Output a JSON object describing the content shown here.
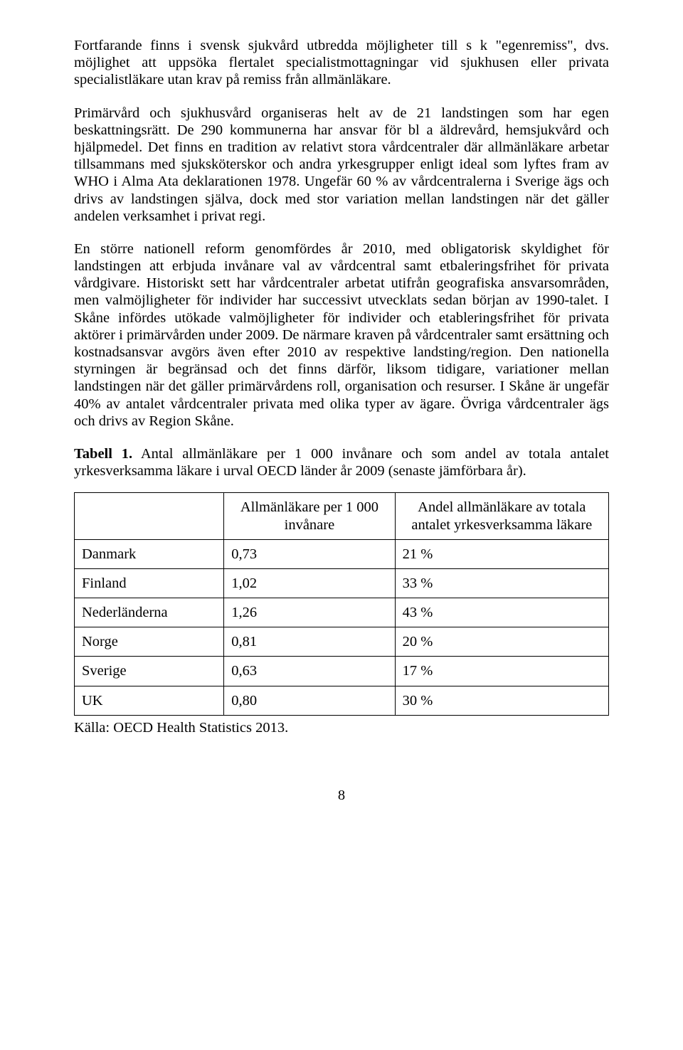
{
  "paragraphs": {
    "p1": "Fortfarande finns i svensk sjukvård utbredda möjligheter till s k \"egenremiss\", dvs. möjlighet att uppsöka flertalet specialistmottagningar vid sjukhusen eller privata specialistläkare utan krav på remiss från allmänläkare.",
    "p2": "Primärvård och sjukhusvård organiseras helt av de 21 landstingen som har egen beskattningsrätt. De 290 kommunerna har ansvar för bl a äldrevård, hemsjukvård och hjälpmedel. Det finns en tradition av relativt stora vårdcentraler där allmänläkare arbetar tillsammans med sjuksköterskor och andra yrkesgrupper enligt ideal som lyftes fram av WHO i Alma Ata deklarationen 1978. Ungefär 60 % av vårdcentralerna i Sverige ägs och drivs av landstingen själva, dock med stor variation mellan landstingen när det gäller andelen verksamhet i privat regi.",
    "p3": "En större nationell reform genomfördes år 2010, med obligatorisk skyldighet för landstingen att erbjuda invånare val av vårdcentral samt etbaleringsfrihet för privata vårdgivare. Historiskt sett har vårdcentraler arbetat utifrån geografiska ansvarsområden, men valmöjligheter för individer har successivt utvecklats sedan början av 1990-talet. I Skåne infördes utökade valmöjligheter för individer och etableringsfrihet för privata aktörer i primärvården under 2009. De närmare kraven på vårdcentraler samt ersättning och kostnadsansvar avgörs även efter 2010 av respektive landsting/region. Den nationella styrningen är begränsad och det finns därför, liksom tidigare, variationer mellan landstingen när det gäller primärvårdens roll, organisation och resurser. I Skåne är ungefär 40% av antalet vårdcentraler privata med olika typer av ägare. Övriga vårdcentraler ägs och drivs av Region Skåne."
  },
  "table": {
    "caption_lead": "Tabell 1.",
    "caption_rest": " Antal allmänläkare per 1 000 invånare och som andel av totala antalet yrkesverksamma läkare i urval OECD länder år 2009 (senaste jämförbara år).",
    "header_blank": "",
    "header_col2": "Allmänläkare per 1 000 invånare",
    "header_col3": "Andel allmänläkare av totala antalet yrkesverksamma läkare",
    "rows": [
      {
        "country": "Danmark",
        "per1000": "0,73",
        "share": "21 %"
      },
      {
        "country": "Finland",
        "per1000": "1,02",
        "share": "33 %"
      },
      {
        "country": "Nederländerna",
        "per1000": "1,26",
        "share": "43 %"
      },
      {
        "country": "Norge",
        "per1000": "0,81",
        "share": "20 %"
      },
      {
        "country": "Sverige",
        "per1000": "0,63",
        "share": "17 %"
      },
      {
        "country": "UK",
        "per1000": "0,80",
        "share": "30 %"
      }
    ],
    "source": "Källa: OECD Health Statistics 2013."
  },
  "page_number": "8"
}
